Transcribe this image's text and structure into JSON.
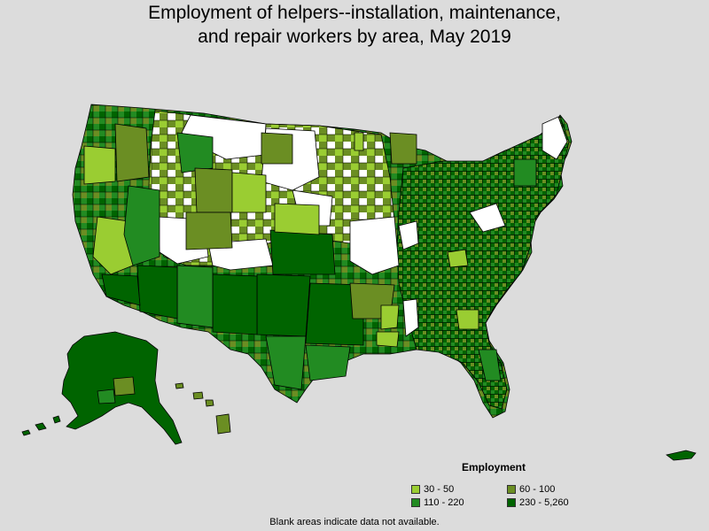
{
  "title": {
    "line1": "Employment of helpers--installation, maintenance,",
    "line2": "and repair workers by area, May 2019"
  },
  "legend": {
    "title": "Employment",
    "items": [
      {
        "label": "30 - 50",
        "color": "#9acd32"
      },
      {
        "label": "60 - 100",
        "color": "#6b8e23"
      },
      {
        "label": "110 - 220",
        "color": "#228b22"
      },
      {
        "label": "230 - 5,260",
        "color": "#006400"
      }
    ]
  },
  "note": "Blank areas indicate data not available.",
  "map_colors": {
    "background": "#dcdcdc",
    "no_data": "#ffffff",
    "border": "#000000"
  }
}
